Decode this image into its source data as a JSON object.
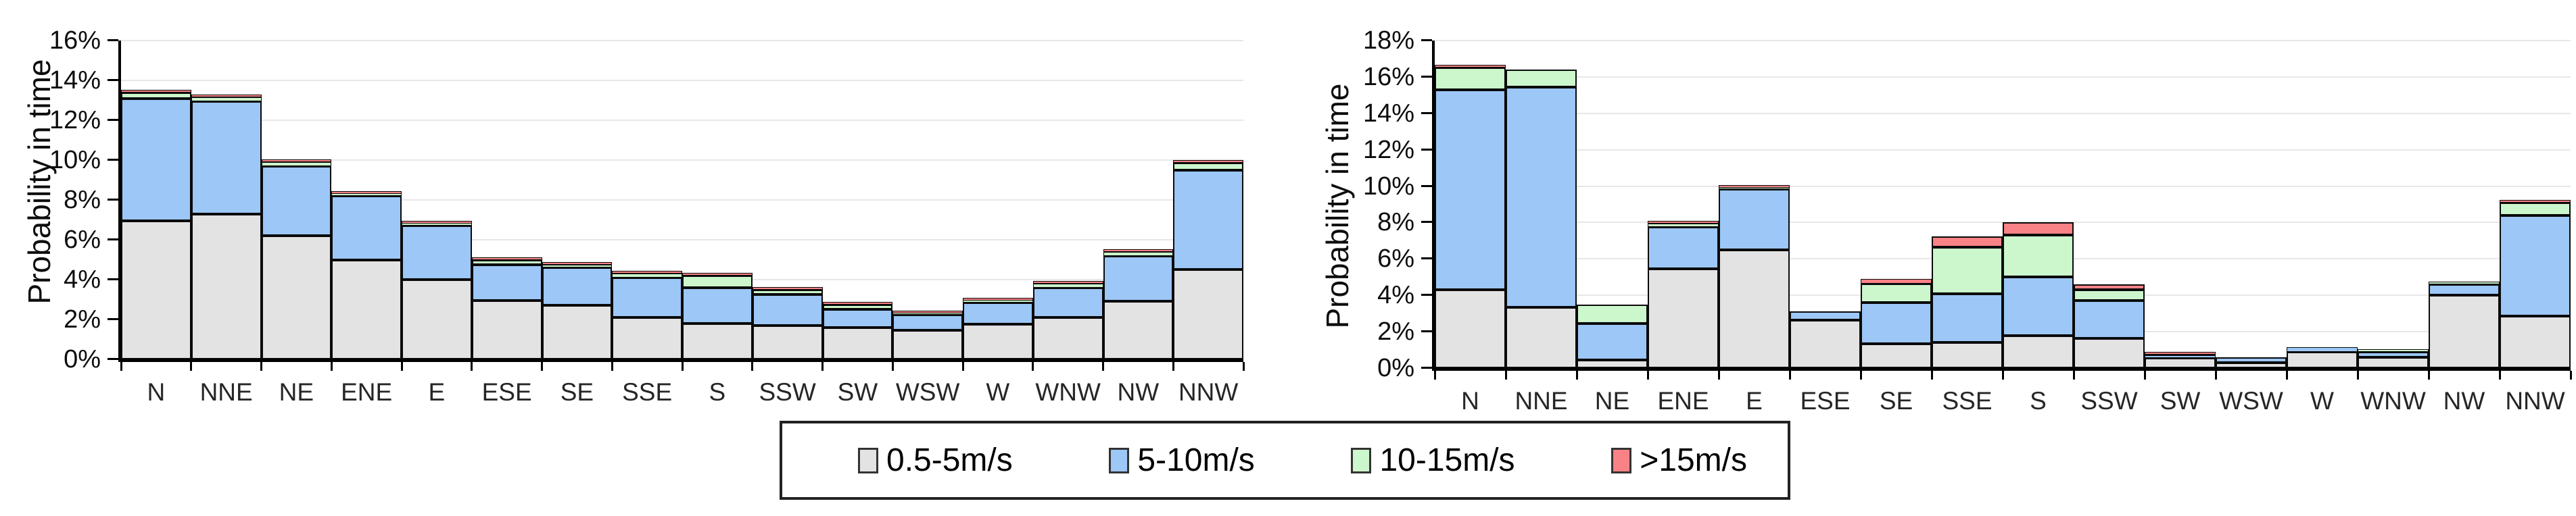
{
  "page": {
    "background": "#ffffff"
  },
  "colors": {
    "band_05_5": "#e3e3e3",
    "band_5_10": "#9cc7f7",
    "band_10_15": "#ccf6cc",
    "band_gt15": "#f98287",
    "bar_border": "#0a0a0a",
    "gridline": "#e7e7e7"
  },
  "legend": {
    "items": [
      {
        "label": "0.5-5m/s",
        "color": "#e3e3e3"
      },
      {
        "label": "5-10m/s",
        "color": "#9cc7f7"
      },
      {
        "label": "10-15m/s",
        "color": "#ccf6cc"
      },
      {
        "label": ">15m/s",
        "color": "#f98287"
      }
    ]
  },
  "chart_data": [
    {
      "type": "bar",
      "stacked": true,
      "title": "",
      "xlabel": "",
      "ylabel": "Probability in time",
      "ylim": [
        0,
        16
      ],
      "ytick_step": 2,
      "ytick_suffix": "%",
      "grid": true,
      "legend_position": "shared-bottom",
      "categories": [
        "N",
        "NNE",
        "NE",
        "ENE",
        "E",
        "ESE",
        "SE",
        "SSE",
        "S",
        "SSW",
        "SW",
        "WSW",
        "W",
        "WNW",
        "NW",
        "NNW"
      ],
      "series": [
        {
          "name": "0.5-5m/s",
          "color": "#e3e3e3",
          "values": [
            6.95,
            7.3,
            6.2,
            5.0,
            4.0,
            2.95,
            2.7,
            2.1,
            1.8,
            1.7,
            1.6,
            1.45,
            1.75,
            2.1,
            2.9,
            4.5
          ]
        },
        {
          "name": "5-10m/s",
          "color": "#9cc7f7",
          "values": [
            6.15,
            5.65,
            3.5,
            3.2,
            2.7,
            1.8,
            1.9,
            2.0,
            1.8,
            1.55,
            0.9,
            0.8,
            1.1,
            1.5,
            2.3,
            5.0
          ]
        },
        {
          "name": "10-15m/s",
          "color": "#ccf6cc",
          "values": [
            0.3,
            0.2,
            0.2,
            0.1,
            0.1,
            0.25,
            0.15,
            0.2,
            0.6,
            0.25,
            0.25,
            0.05,
            0.1,
            0.2,
            0.2,
            0.35
          ]
        },
        {
          "name": ">15m/s",
          "color": "#f98287",
          "values": [
            0.1,
            0.05,
            0.05,
            0.05,
            0.05,
            0.05,
            0.05,
            0.1,
            0.15,
            0.1,
            0.05,
            0.05,
            0.05,
            0.05,
            0.05,
            0.1
          ]
        }
      ]
    },
    {
      "type": "bar",
      "stacked": true,
      "title": "",
      "xlabel": "",
      "ylabel": "Probability in time",
      "ylim": [
        0,
        18
      ],
      "ytick_step": 2,
      "ytick_suffix": "%",
      "grid": true,
      "legend_position": "shared-bottom",
      "categories": [
        "N",
        "NNE",
        "NE",
        "ENE",
        "E",
        "ESE",
        "SE",
        "SSE",
        "S",
        "SSW",
        "SW",
        "WSW",
        "W",
        "WNW",
        "NW",
        "NNW"
      ],
      "series": [
        {
          "name": "0.5-5m/s",
          "color": "#e3e3e3",
          "values": [
            4.3,
            3.35,
            0.45,
            5.45,
            6.5,
            2.65,
            1.35,
            1.4,
            1.8,
            1.65,
            0.55,
            0.3,
            0.9,
            0.6,
            4.0,
            2.85
          ]
        },
        {
          "name": "5-10m/s",
          "color": "#9cc7f7",
          "values": [
            11.0,
            12.1,
            2.0,
            2.3,
            3.35,
            0.45,
            2.25,
            2.7,
            3.2,
            2.05,
            0.15,
            0.3,
            0.25,
            0.3,
            0.6,
            5.55
          ]
        },
        {
          "name": "10-15m/s",
          "color": "#ccf6cc",
          "values": [
            1.2,
            0.95,
            1.05,
            0.2,
            0.05,
            0.0,
            1.05,
            2.55,
            2.3,
            0.6,
            0.05,
            0.0,
            0.0,
            0.1,
            0.1,
            0.7
          ]
        },
        {
          "name": ">15m/s",
          "color": "#f98287",
          "values": [
            0.15,
            0.0,
            0.0,
            0.05,
            0.05,
            0.0,
            0.25,
            0.6,
            0.7,
            0.3,
            0.1,
            0.0,
            0.0,
            0.0,
            0.0,
            0.1
          ]
        }
      ]
    }
  ]
}
